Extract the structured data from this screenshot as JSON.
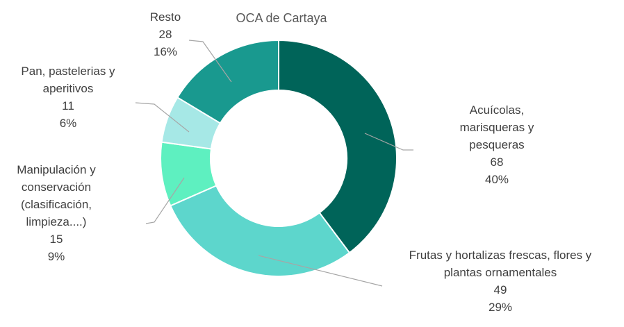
{
  "chart_data": {
    "type": "donut",
    "title": "OCA de Cartaya",
    "categories": [
      "Acuícolas, marisqueras y pesqueras",
      "Frutas y hortalizas frescas, flores y plantas ornamentales",
      "Manipulación y conservación (clasificación, limpieza....)",
      "Pan, pastelerias y aperitivos",
      "Resto"
    ],
    "values": [
      68,
      49,
      15,
      11,
      28
    ],
    "percent_labels": [
      "40%",
      "29%",
      "9%",
      "6%",
      "16%"
    ],
    "colors": [
      "#006459",
      "#5dd6cc",
      "#5ef0c0",
      "#a6e8e6",
      "#19998f"
    ]
  }
}
